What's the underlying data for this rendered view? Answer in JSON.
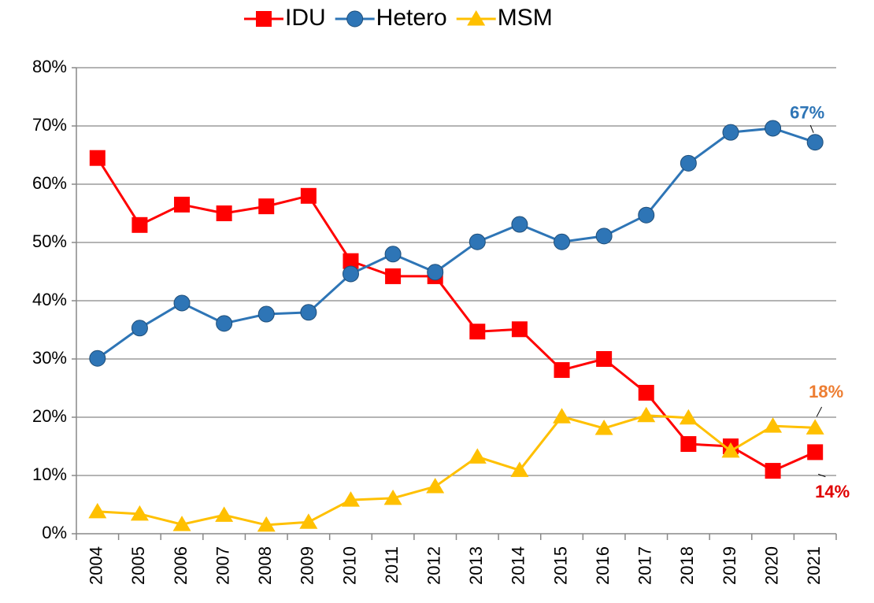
{
  "chart_data": {
    "type": "line",
    "categories": [
      "2004",
      "2005",
      "2006",
      "2007",
      "2008",
      "2009",
      "2010",
      "2011",
      "2012",
      "2013",
      "2014",
      "2015",
      "2016",
      "2017",
      "2018",
      "2019",
      "2020",
      "2021"
    ],
    "series": [
      {
        "name": "IDU",
        "color": "#ff0000",
        "marker": "square",
        "label_color": "#e00000",
        "values": [
          64.5,
          53,
          56.5,
          55,
          56.2,
          58,
          46.8,
          44.2,
          44.2,
          34.7,
          35.1,
          28.1,
          30,
          24.2,
          15.4,
          15,
          10.8,
          14
        ],
        "value_labels": [
          null,
          null,
          null,
          null,
          null,
          null,
          null,
          null,
          null,
          null,
          null,
          null,
          null,
          null,
          null,
          null,
          null,
          "14%"
        ]
      },
      {
        "name": "Hetero",
        "color": "#2e75b6",
        "marker": "circle",
        "label_color": "#2e75b6",
        "values": [
          30.1,
          35.3,
          39.6,
          36.1,
          37.7,
          38,
          44.6,
          48,
          44.9,
          50.1,
          53.1,
          50.1,
          51.1,
          54.7,
          63.6,
          68.9,
          69.6,
          67.2
        ],
        "value_labels": [
          null,
          null,
          null,
          null,
          null,
          null,
          null,
          null,
          null,
          null,
          null,
          null,
          null,
          null,
          null,
          null,
          null,
          "67%"
        ]
      },
      {
        "name": "MSM",
        "color": "#ffc000",
        "marker": "triangle",
        "label_color": "#ed7d31",
        "values": [
          3.8,
          3.4,
          1.6,
          3.2,
          1.5,
          2,
          5.8,
          6.1,
          8.1,
          13.2,
          10.9,
          20.1,
          18.1,
          20.3,
          19.9,
          14.2,
          18.5,
          18.2
        ],
        "value_labels": [
          null,
          null,
          null,
          null,
          null,
          null,
          null,
          null,
          null,
          null,
          null,
          null,
          null,
          null,
          null,
          null,
          null,
          "18%"
        ]
      }
    ],
    "ylim": [
      0,
      80
    ],
    "yticks": [
      {
        "value": 0,
        "label": "0%"
      },
      {
        "value": 10,
        "label": "10%"
      },
      {
        "value": 20,
        "label": "20%"
      },
      {
        "value": 30,
        "label": "30%"
      },
      {
        "value": 40,
        "label": "40%"
      },
      {
        "value": 50,
        "label": "50%"
      },
      {
        "value": 60,
        "label": "60%"
      },
      {
        "value": 70,
        "label": "70%"
      },
      {
        "value": 80,
        "label": "80%"
      }
    ],
    "grid": true,
    "legend": "top"
  }
}
